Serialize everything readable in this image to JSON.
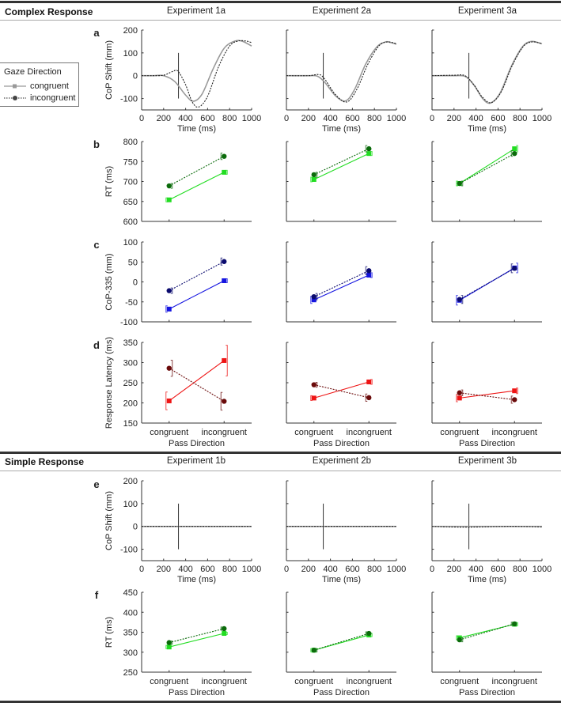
{
  "sections": {
    "complex": {
      "title": "Complex Response",
      "experiments": [
        "Experiment 1a",
        "Experiment 2a",
        "Experiment 3a"
      ]
    },
    "simple": {
      "title": "Simple Response",
      "experiments": [
        "Experiment 1b",
        "Experiment 2b",
        "Experiment 3b"
      ]
    }
  },
  "legend": {
    "title": "Gaze Direction",
    "items": [
      "congruent",
      "incongruent"
    ]
  },
  "panel_letters": [
    "a",
    "b",
    "c",
    "d",
    "e",
    "f"
  ],
  "colors": {
    "a": {
      "congruent": "#999999",
      "incongruent": "#222222"
    },
    "b": {
      "congruent": "#22dd22",
      "incongruent": "#0b6b0b"
    },
    "c": {
      "congruent": "#1414e0",
      "incongruent": "#0a0a6e"
    },
    "d": {
      "congruent": "#ee1414",
      "incongruent": "#6a0a0a"
    },
    "e": {
      "congruent": "#999999",
      "incongruent": "#222222"
    },
    "f": {
      "congruent": "#22dd22",
      "incongruent": "#0b6b0b"
    }
  },
  "chart_data": {
    "rows": {
      "a": {
        "type": "line",
        "ylabel": "CoP Shift (mm)",
        "ylim": [
          -150,
          200
        ],
        "yticks": [
          -100,
          0,
          100,
          200
        ],
        "xlabel": "Time (ms)",
        "xlim": [
          0,
          1000
        ],
        "xticks": [
          0,
          200,
          400,
          600,
          800,
          1000
        ],
        "marker_line": {
          "x": 335,
          "y": [
            -100,
            100
          ]
        }
      },
      "b": {
        "type": "line",
        "ylabel": "RT (ms)",
        "ylim": [
          600,
          800
        ],
        "yticks": [
          600,
          650,
          700,
          750,
          800
        ],
        "categories": [
          "congruent",
          "incongruent"
        ]
      },
      "c": {
        "type": "line",
        "ylabel": "CoP-335 (mm)",
        "ylim": [
          -100,
          100
        ],
        "yticks": [
          -100,
          -50,
          0,
          50,
          100
        ],
        "categories": [
          "congruent",
          "incongruent"
        ]
      },
      "d": {
        "type": "line",
        "ylabel": "Response Latency (ms)",
        "ylim": [
          150,
          350
        ],
        "yticks": [
          150,
          200,
          250,
          300,
          350
        ],
        "xlabel": "Pass Direction",
        "categories": [
          "congruent",
          "incongruent"
        ]
      },
      "e": {
        "type": "line",
        "ylabel": "CoP Shift (mm)",
        "ylim": [
          -150,
          200
        ],
        "yticks": [
          -100,
          0,
          100,
          200
        ],
        "xlabel": "Time (ms)",
        "xlim": [
          0,
          1000
        ],
        "xticks": [
          0,
          200,
          400,
          600,
          800,
          1000
        ],
        "marker_line": {
          "x": 335,
          "y": [
            -100,
            100
          ]
        }
      },
      "f": {
        "type": "line",
        "ylabel": "RT (ms)",
        "ylim": [
          250,
          450
        ],
        "yticks": [
          250,
          300,
          350,
          400,
          450
        ],
        "xlabel": "Pass Direction",
        "categories": [
          "congruent",
          "incongruent"
        ]
      }
    },
    "panels": {
      "a": [
        {
          "experiment": "Experiment 1a",
          "series": [
            {
              "name": "congruent",
              "points": [
                [
                  0,
                  0
                ],
                [
                  100,
                  0
                ],
                [
                  200,
                  0
                ],
                [
                  300,
                  -25
                ],
                [
                  400,
                  -85
                ],
                [
                  470,
                  -112
                ],
                [
                  550,
                  -80
                ],
                [
                  650,
                  30
                ],
                [
                  750,
                  120
                ],
                [
                  850,
                  152
                ],
                [
                  920,
                  150
                ],
                [
                  1000,
                  130
                ]
              ]
            },
            {
              "name": "incongruent",
              "points": [
                [
                  0,
                  0
                ],
                [
                  100,
                  0
                ],
                [
                  200,
                  2
                ],
                [
                  280,
                  18
                ],
                [
                  330,
                  20
                ],
                [
                  400,
                  -40
                ],
                [
                  460,
                  -115
                ],
                [
                  520,
                  -137
                ],
                [
                  600,
                  -90
                ],
                [
                  700,
                  40
                ],
                [
                  800,
                  130
                ],
                [
                  880,
                  152
                ],
                [
                  950,
                  152
                ],
                [
                  1000,
                  145
                ]
              ]
            }
          ]
        },
        {
          "experiment": "Experiment 2a",
          "series": [
            {
              "name": "congruent",
              "points": [
                [
                  0,
                  0
                ],
                [
                  200,
                  0
                ],
                [
                  280,
                  -2
                ],
                [
                  350,
                  -30
                ],
                [
                  450,
                  -90
                ],
                [
                  540,
                  -110
                ],
                [
                  620,
                  -60
                ],
                [
                  720,
                  50
                ],
                [
                  820,
                  125
                ],
                [
                  900,
                  148
                ],
                [
                  950,
                  145
                ],
                [
                  1000,
                  138
                ]
              ]
            },
            {
              "name": "incongruent",
              "points": [
                [
                  0,
                  0
                ],
                [
                  200,
                  0
                ],
                [
                  290,
                  5
                ],
                [
                  340,
                  -10
                ],
                [
                  450,
                  -85
                ],
                [
                  550,
                  -115
                ],
                [
                  640,
                  -60
                ],
                [
                  740,
                  50
                ],
                [
                  840,
                  130
                ],
                [
                  920,
                  148
                ],
                [
                  1000,
                  140
                ]
              ]
            }
          ]
        },
        {
          "experiment": "Experiment 3a",
          "series": [
            {
              "name": "congruent",
              "points": [
                [
                  0,
                  0
                ],
                [
                  200,
                  0
                ],
                [
                  300,
                  -3
                ],
                [
                  380,
                  -40
                ],
                [
                  460,
                  -100
                ],
                [
                  530,
                  -120
                ],
                [
                  620,
                  -75
                ],
                [
                  720,
                  40
                ],
                [
                  820,
                  125
                ],
                [
                  900,
                  150
                ],
                [
                  1000,
                  140
                ]
              ]
            },
            {
              "name": "incongruent",
              "points": [
                [
                  0,
                  0
                ],
                [
                  200,
                  2
                ],
                [
                  300,
                  0
                ],
                [
                  380,
                  -40
                ],
                [
                  460,
                  -95
                ],
                [
                  540,
                  -118
                ],
                [
                  630,
                  -70
                ],
                [
                  730,
                  45
                ],
                [
                  830,
                  128
                ],
                [
                  910,
                  148
                ],
                [
                  1000,
                  140
                ]
              ]
            }
          ]
        }
      ],
      "b": [
        {
          "experiment": "Experiment 1a",
          "series": [
            {
              "name": "congruent",
              "values": [
                654,
                723
              ],
              "err": [
                5,
                5
              ]
            },
            {
              "name": "incongruent",
              "values": [
                689,
                763
              ],
              "err": [
                6,
                8
              ]
            }
          ]
        },
        {
          "experiment": "Experiment 2a",
          "series": [
            {
              "name": "congruent",
              "values": [
                705,
                770
              ],
              "err": [
                6,
                5
              ]
            },
            {
              "name": "incongruent",
              "values": [
                717,
                782
              ],
              "err": [
                6,
                8
              ]
            }
          ]
        },
        {
          "experiment": "Experiment 3a",
          "series": [
            {
              "name": "congruent",
              "values": [
                695,
                782
              ],
              "err": [
                6,
                8
              ]
            },
            {
              "name": "incongruent",
              "values": [
                695,
                770
              ],
              "err": [
                6,
                7
              ]
            }
          ]
        }
      ],
      "c": [
        {
          "experiment": "Experiment 1a",
          "series": [
            {
              "name": "congruent",
              "values": [
                -68,
                3
              ],
              "err": [
                8,
                5
              ]
            },
            {
              "name": "incongruent",
              "values": [
                -22,
                51
              ],
              "err": [
                7,
                9
              ]
            }
          ]
        },
        {
          "experiment": "Experiment 2a",
          "series": [
            {
              "name": "congruent",
              "values": [
                -45,
                17
              ],
              "err": [
                9,
                6
              ]
            },
            {
              "name": "incongruent",
              "values": [
                -37,
                28
              ],
              "err": [
                8,
                10
              ]
            }
          ]
        },
        {
          "experiment": "Experiment 3a",
          "series": [
            {
              "name": "congruent",
              "values": [
                -46,
                35
              ],
              "err": [
                12,
                12
              ]
            },
            {
              "name": "incongruent",
              "values": [
                -44,
                34
              ],
              "err": [
                10,
                11
              ]
            }
          ]
        }
      ],
      "d": [
        {
          "experiment": "Experiment 1a",
          "series": [
            {
              "name": "congruent",
              "values": [
                205,
                305
              ],
              "err": [
                22,
                38
              ]
            },
            {
              "name": "incongruent",
              "values": [
                286,
                204
              ],
              "err": [
                20,
                22
              ]
            }
          ]
        },
        {
          "experiment": "Experiment 2a",
          "series": [
            {
              "name": "congruent",
              "values": [
                212,
                252
              ],
              "err": [
                6,
                6
              ]
            },
            {
              "name": "incongruent",
              "values": [
                245,
                213
              ],
              "err": [
                6,
                9
              ]
            }
          ]
        },
        {
          "experiment": "Experiment 3a",
          "series": [
            {
              "name": "congruent",
              "values": [
                212,
                230
              ],
              "err": [
                9,
                7
              ]
            },
            {
              "name": "incongruent",
              "values": [
                225,
                208
              ],
              "err": [
                7,
                9
              ]
            }
          ]
        }
      ],
      "e": [
        {
          "experiment": "Experiment 1b",
          "series": [
            {
              "name": "congruent",
              "points": [
                [
                  0,
                  0
                ],
                [
                  1000,
                  0
                ]
              ]
            },
            {
              "name": "incongruent",
              "points": [
                [
                  0,
                  0
                ],
                [
                  1000,
                  0
                ]
              ]
            }
          ]
        },
        {
          "experiment": "Experiment 2b",
          "series": [
            {
              "name": "congruent",
              "points": [
                [
                  0,
                  0
                ],
                [
                  1000,
                  0
                ]
              ]
            },
            {
              "name": "incongruent",
              "points": [
                [
                  0,
                  0
                ],
                [
                  1000,
                  0
                ]
              ]
            }
          ]
        },
        {
          "experiment": "Experiment 3b",
          "series": [
            {
              "name": "congruent",
              "points": [
                [
                  0,
                  0
                ],
                [
                  1000,
                  0
                ]
              ]
            },
            {
              "name": "incongruent",
              "points": [
                [
                  0,
                  0
                ],
                [
                  300,
                  -3
                ],
                [
                  700,
                  0
                ],
                [
                  1000,
                  -2
                ]
              ]
            }
          ]
        }
      ],
      "f": [
        {
          "experiment": "Experiment 1b",
          "series": [
            {
              "name": "congruent",
              "values": [
                313,
                347
              ],
              "err": [
                4,
                3
              ]
            },
            {
              "name": "incongruent",
              "values": [
                324,
                359
              ],
              "err": [
                4,
                4
              ]
            }
          ]
        },
        {
          "experiment": "Experiment 2b",
          "series": [
            {
              "name": "congruent",
              "values": [
                305,
                343
              ],
              "err": [
                4,
                4
              ]
            },
            {
              "name": "incongruent",
              "values": [
                305,
                347
              ],
              "err": [
                4,
                4
              ]
            }
          ]
        },
        {
          "experiment": "Experiment 3b",
          "series": [
            {
              "name": "congruent",
              "values": [
                336,
                370
              ],
              "err": [
                5,
                4
              ]
            },
            {
              "name": "incongruent",
              "values": [
                331,
                371
              ],
              "err": [
                5,
                4
              ]
            }
          ]
        }
      ]
    }
  }
}
